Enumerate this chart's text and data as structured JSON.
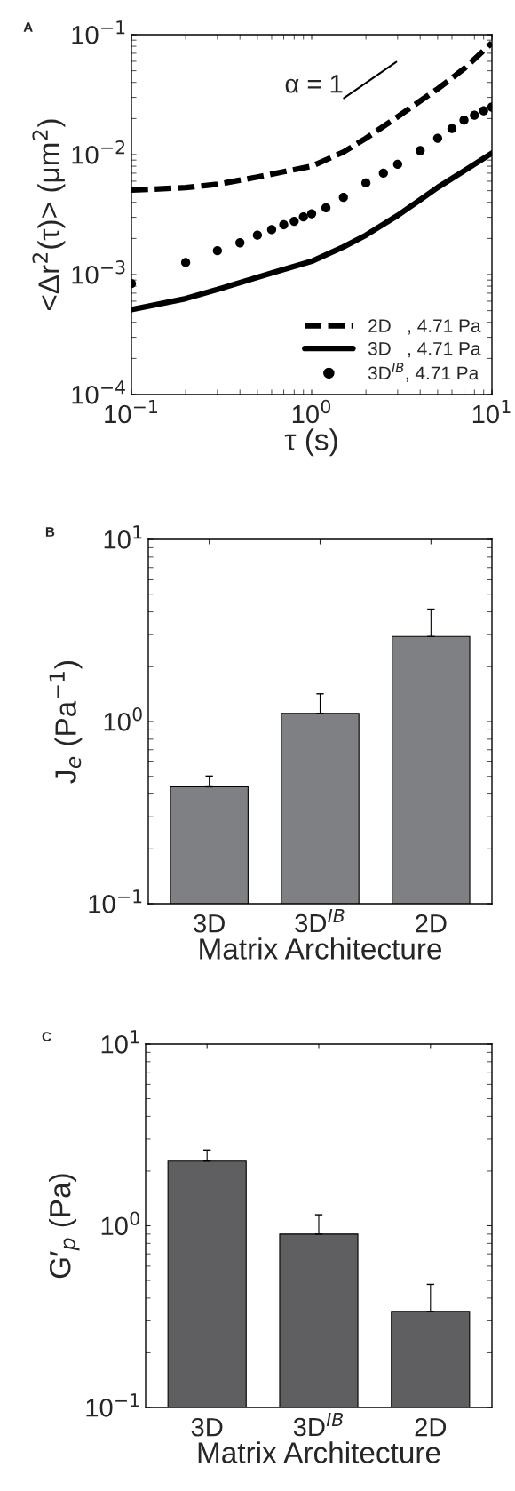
{
  "chart_data": [
    {
      "type": "line",
      "xlabel": "τ (s)",
      "ylabel": "<Δr$^{2}$(τ)> (μm$^{2}$)",
      "log": "xy",
      "grid": false,
      "legend": "bottom right",
      "xlim": [
        0.1,
        10
      ],
      "xticks": [
        {
          "value": 0.1,
          "label": "10$^{−1}$"
        },
        {
          "value": 1,
          "label": "10$^{0}$"
        },
        {
          "value": 10,
          "label": "10$^{1}$"
        }
      ],
      "ylim": [
        0.0001,
        0.1
      ],
      "yticks": [
        {
          "value": 0.0001,
          "label": "10$^{−4}$"
        },
        {
          "value": 0.001,
          "label": "10$^{−3}$"
        },
        {
          "value": 0.01,
          "label": "10$^{−2}$"
        },
        {
          "value": 0.1,
          "label": "10$^{−1}$"
        }
      ],
      "annotations": [
        "A",
        {
          "text": "α = 1",
          "x": 1.5,
          "y": 0.0296
        }
      ],
      "series": [
        {
          "name": "2D   , 4.71 Pa",
          "type": "line",
          "line_style": "dashed",
          "color": "#000000",
          "x": [
            0.1,
            0.2,
            0.3,
            0.5,
            0.7,
            1,
            1.5,
            2,
            3,
            4,
            5,
            7,
            10
          ],
          "values": [
            0.00506,
            0.0053,
            0.00566,
            0.0065,
            0.0072,
            0.008,
            0.0105,
            0.0137,
            0.0207,
            0.028,
            0.0353,
            0.052,
            0.0855
          ]
        },
        {
          "name": "3D   , 4.71 Pa",
          "type": "line",
          "line_style": "solid",
          "color": "#000000",
          "x": [
            0.1,
            0.2,
            0.3,
            0.6,
            1,
            1.5,
            2,
            3,
            4,
            5,
            7,
            10
          ],
          "values": [
            0.00051,
            0.00063,
            0.00075,
            0.00103,
            0.00129,
            0.0017,
            0.00213,
            0.00311,
            0.0042,
            0.00532,
            0.0073,
            0.0103
          ]
        },
        {
          "name": "3D$^{IB}$, 4.71 Pa",
          "type": "scatter",
          "marker": "circle",
          "color": "#000000",
          "x": [
            0.1,
            0.2,
            0.3,
            0.4,
            0.5,
            0.6,
            0.7,
            0.8,
            0.9,
            1.0,
            1.2,
            1.5,
            2,
            2.5,
            3,
            4,
            5,
            6,
            7,
            8,
            9,
            10
          ],
          "values": [
            0.00084,
            0.00126,
            0.00158,
            0.00184,
            0.00213,
            0.00237,
            0.0026,
            0.00278,
            0.00302,
            0.00321,
            0.0036,
            0.0044,
            0.0058,
            0.007,
            0.0083,
            0.0108,
            0.0137,
            0.0165,
            0.0194,
            0.0213,
            0.0232,
            0.0249
          ]
        },
        {
          "type": "line",
          "line_style": "solid",
          "color": "#000000",
          "x": [
            1.51,
            2.95
          ],
          "values": [
            0.0296,
            0.0593
          ]
        }
      ]
    },
    {
      "type": "bar",
      "ylabel": "J$_{e}$ (Pa$^{−1}$)",
      "xlabel": "Matrix Architecture",
      "log": "y",
      "grid": false,
      "categories": [
        "3D",
        "3D$^{IB}$",
        "2D"
      ],
      "values": [
        0.438,
        1.11,
        2.93
      ],
      "errors": [
        [
          0.438,
          0.502
        ],
        [
          1.11,
          1.42
        ],
        [
          2.93,
          4.14
        ]
      ],
      "color": "#7f8083",
      "ylim": [
        0.1,
        10
      ],
      "yticks": [
        {
          "value": 0.1,
          "label": "10$^{−1}$"
        },
        {
          "value": 1,
          "label": "10$^{0}$"
        },
        {
          "value": 10,
          "label": "10$^{1}$"
        }
      ],
      "annotations": [
        "B"
      ]
    },
    {
      "type": "bar",
      "ylabel": "G′$_{p}$ (Pa)",
      "xlabel": "Matrix Architecture",
      "log": "y",
      "grid": false,
      "categories": [
        "3D",
        "3D$^{IB}$",
        "2D"
      ],
      "values": [
        2.27,
        0.9,
        0.338
      ],
      "errors": [
        [
          2.27,
          2.61
        ],
        [
          0.9,
          1.15
        ],
        [
          0.338,
          0.476
        ]
      ],
      "color": "#5f5f61",
      "ylim": [
        0.1,
        10
      ],
      "yticks": [
        {
          "value": 0.1,
          "label": "10$^{−1}$"
        },
        {
          "value": 1,
          "label": "10$^{0}$"
        },
        {
          "value": 10,
          "label": "10$^{1}$"
        }
      ],
      "annotations": [
        "C"
      ]
    }
  ]
}
